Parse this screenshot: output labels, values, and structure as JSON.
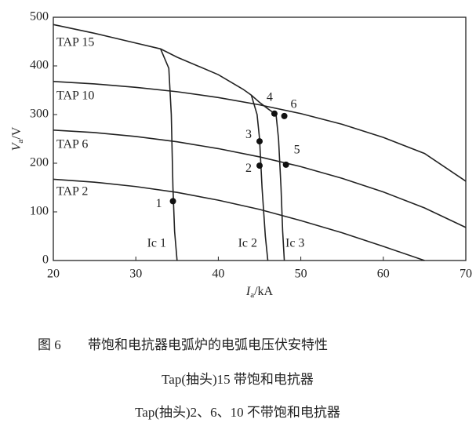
{
  "chart_data": {
    "type": "line",
    "y_label": {
      "symbol": "V",
      "subscript": "a",
      "unit": "/V"
    },
    "x_label": {
      "symbol": "I",
      "subscript": "a",
      "unit": "/kA"
    },
    "xlim": [
      20,
      70
    ],
    "xticks": [
      20,
      30,
      40,
      50,
      60,
      70
    ],
    "ylim": [
      0,
      500
    ],
    "yticks": [
      0,
      100,
      200,
      300,
      400,
      500
    ],
    "series": [
      {
        "name": "TAP 15",
        "color": "#222",
        "x": [
          20,
          25,
          30,
          33,
          35,
          40,
          43,
          44,
          45,
          46,
          47
        ],
        "values": [
          485,
          467,
          447,
          435,
          418,
          382,
          352,
          340,
          325,
          312,
          300
        ]
      },
      {
        "name": "TAP 10",
        "color": "#222",
        "x": [
          20,
          25,
          30,
          35,
          40,
          45,
          50,
          55,
          60,
          65,
          70
        ],
        "values": [
          368,
          363,
          356,
          347,
          335,
          320,
          302,
          280,
          253,
          220,
          163
        ]
      },
      {
        "name": "TAP 6",
        "color": "#222",
        "x": [
          20,
          25,
          30,
          35,
          40,
          45,
          50,
          55,
          60,
          65,
          70
        ],
        "values": [
          268,
          263,
          255,
          244,
          230,
          213,
          193,
          169,
          141,
          108,
          68
        ]
      },
      {
        "name": "TAP 2",
        "color": "#222",
        "x": [
          20,
          25,
          30,
          35,
          40,
          45,
          50,
          55,
          60,
          65
        ],
        "values": [
          167,
          161,
          152,
          140,
          124,
          105,
          82,
          57,
          29,
          0
        ]
      },
      {
        "name": "Ic 1",
        "color": "#222",
        "x": [
          33,
          34,
          34.3,
          34.5,
          34.7,
          35
        ],
        "values": [
          435,
          395,
          300,
          150,
          60,
          0
        ]
      },
      {
        "name": "Ic 2",
        "color": "#222",
        "x": [
          44,
          44.7,
          45,
          45.3,
          45.7,
          46
        ],
        "values": [
          340,
          300,
          250,
          150,
          50,
          0
        ]
      },
      {
        "name": "Ic 3",
        "color": "#222",
        "x": [
          47,
          47.3,
          47.6,
          47.8,
          48
        ],
        "values": [
          300,
          250,
          150,
          60,
          0
        ]
      }
    ],
    "points": [
      {
        "label": "1",
        "x": 34.5,
        "y": 122
      },
      {
        "label": "2",
        "x": 45,
        "y": 195
      },
      {
        "label": "3",
        "x": 45,
        "y": 245
      },
      {
        "label": "4",
        "x": 46.8,
        "y": 302
      },
      {
        "label": "5",
        "x": 48.2,
        "y": 197
      },
      {
        "label": "6",
        "x": 48,
        "y": 297
      }
    ]
  },
  "caption": {
    "figure": "图 6",
    "title": "带饱和电抗器电弧炉的电弧电压伏安特性",
    "lines": [
      "Tap(抽头)15 带饱和电抗器",
      "Tap(抽头)2、6、10 不带饱和电抗器"
    ]
  }
}
